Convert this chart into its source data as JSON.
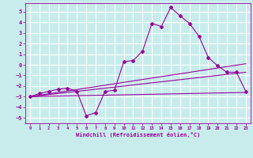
{
  "title": "",
  "xlabel": "Windchill (Refroidissement éolien,°C)",
  "ylabel": "",
  "background_color": "#c8ecec",
  "line_color": "#990099",
  "grid_color": "#ffffff",
  "xlim": [
    -0.5,
    23.5
  ],
  "ylim": [
    -5.5,
    5.8
  ],
  "xticks": [
    0,
    1,
    2,
    3,
    4,
    5,
    6,
    7,
    8,
    9,
    10,
    11,
    12,
    13,
    14,
    15,
    16,
    17,
    18,
    19,
    20,
    21,
    22,
    23
  ],
  "yticks": [
    -5,
    -4,
    -3,
    -2,
    -1,
    0,
    1,
    2,
    3,
    4,
    5
  ],
  "series1_x": [
    0,
    1,
    2,
    3,
    4,
    5,
    6,
    7,
    8,
    9,
    10,
    11,
    12,
    13,
    14,
    15,
    16,
    17,
    18,
    19,
    20,
    21,
    22,
    23
  ],
  "series1_y": [
    -3.0,
    -2.7,
    -2.5,
    -2.3,
    -2.2,
    -2.5,
    -4.8,
    -4.5,
    -2.5,
    -2.4,
    0.3,
    0.4,
    1.3,
    3.9,
    3.6,
    5.4,
    4.6,
    3.9,
    2.7,
    0.7,
    -0.1,
    -0.7,
    -0.7,
    -2.5
  ],
  "series2_x": [
    0,
    23
  ],
  "series2_y": [
    -3.0,
    -2.6
  ],
  "series3_x": [
    0,
    23
  ],
  "series3_y": [
    -3.0,
    0.1
  ],
  "series4_x": [
    0,
    23
  ],
  "series4_y": [
    -3.0,
    -0.7
  ]
}
